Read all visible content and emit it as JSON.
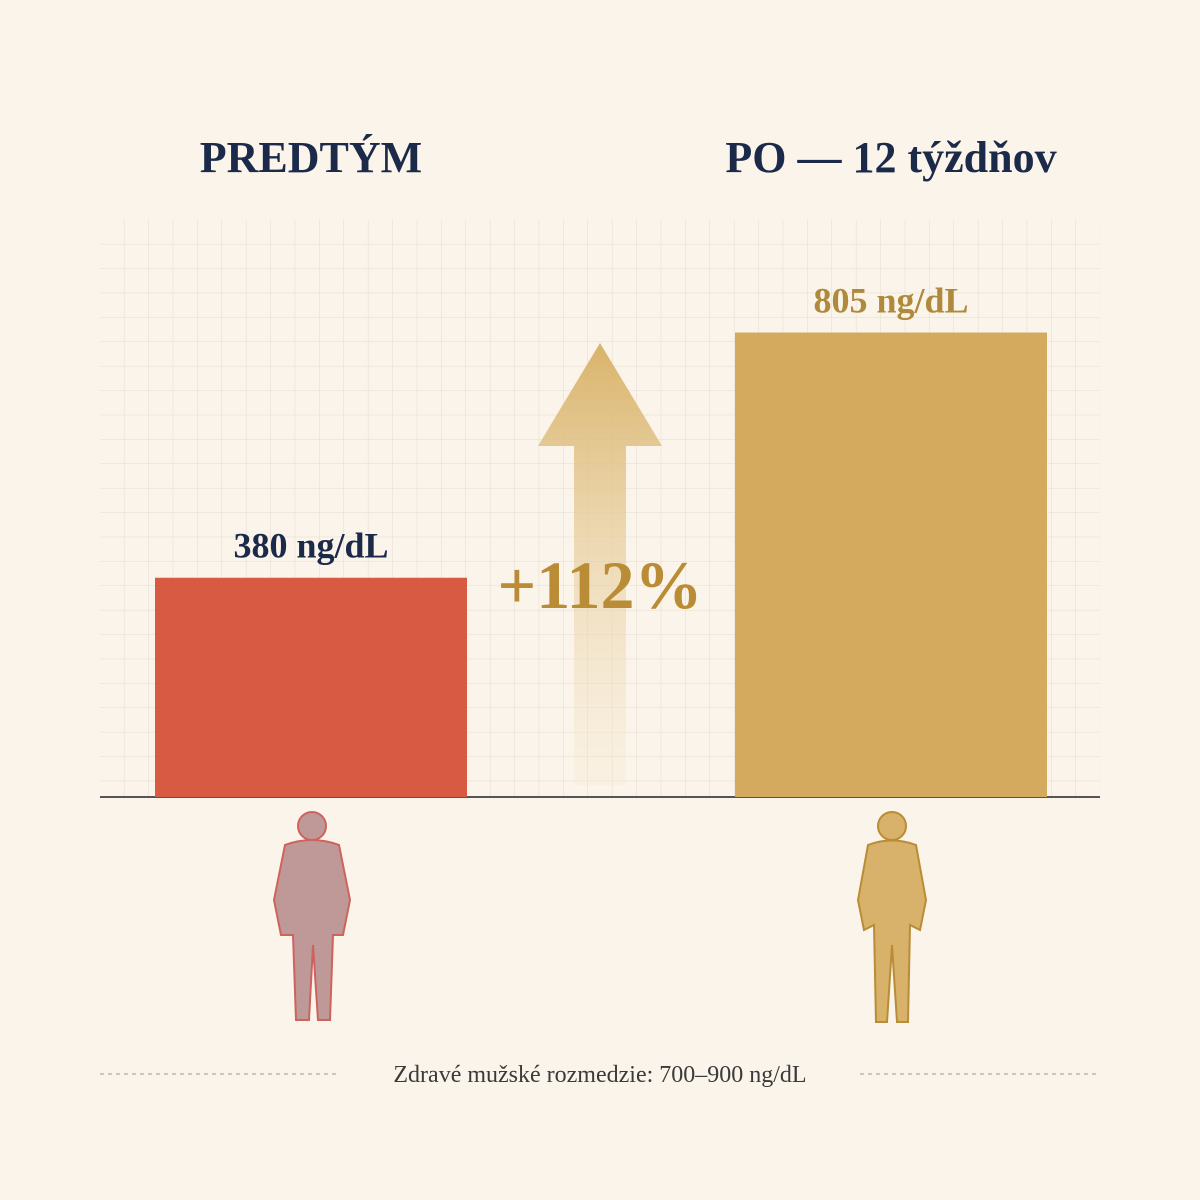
{
  "chart_data": {
    "type": "bar",
    "categories": [
      "PREDTÝM",
      "PO — 12 týždňov"
    ],
    "values": [
      380,
      805
    ],
    "value_labels": [
      "380 ng/dL",
      "805 ng/dL"
    ],
    "colors": [
      "#d95a43",
      "#d4aa5e"
    ],
    "label_colors": [
      "#1c2a4a",
      "#b08a3c"
    ],
    "ylim": [
      0,
      1000
    ],
    "annotation": "+112%",
    "footnote": "Zdravé mužské rozmedzie: 700–900 ng/dL"
  }
}
